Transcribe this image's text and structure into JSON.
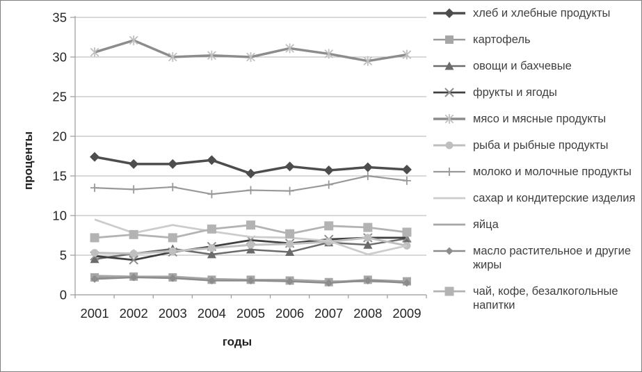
{
  "chart_data": {
    "type": "line",
    "title": "",
    "xlabel": "годы",
    "ylabel": "проценты",
    "ylim": [
      0,
      35
    ],
    "yticks": [
      0,
      5,
      10,
      15,
      20,
      25,
      30,
      35
    ],
    "grid": true,
    "legend_position": "right",
    "categories": [
      "2001",
      "2002",
      "2003",
      "2004",
      "2005",
      "2006",
      "2007",
      "2008",
      "2009"
    ],
    "series": [
      {
        "name": "хлеб и хлебные продукты",
        "marker": "diamond",
        "line_color": "#4d4d4d",
        "marker_color": "#4d4d4d",
        "line_width": 3.5,
        "marker_size": 7,
        "values": [
          17.4,
          16.5,
          16.5,
          17.0,
          15.3,
          16.2,
          15.7,
          16.1,
          15.8
        ]
      },
      {
        "name": "картофель",
        "marker": "square",
        "line_color": "#999999",
        "marker_color": "#a6a6a6",
        "line_width": 2.5,
        "marker_size": 6,
        "values": [
          2.2,
          2.3,
          2.2,
          1.9,
          1.9,
          1.8,
          1.6,
          1.9,
          1.7
        ]
      },
      {
        "name": "овощи и бахчевые",
        "marker": "triangle",
        "line_color": "#6b6b6b",
        "marker_color": "#6b6b6b",
        "line_width": 2.5,
        "marker_size": 6.5,
        "values": [
          4.5,
          5.2,
          5.8,
          5.1,
          5.7,
          5.4,
          6.6,
          6.3,
          7.1
        ]
      },
      {
        "name": "фрукты и ягоды",
        "marker": "x",
        "line_color": "#404040",
        "marker_color": "#8c8c8c",
        "line_width": 2.8,
        "marker_size": 6,
        "values": [
          4.9,
          4.4,
          5.4,
          6.1,
          6.9,
          6.5,
          7.0,
          7.2,
          7.2
        ]
      },
      {
        "name": "мясо и мясные продукты",
        "marker": "asterisk",
        "line_color": "#8c8c8c",
        "marker_color": "#c0c0c0",
        "line_width": 3.5,
        "marker_size": 7,
        "values": [
          30.6,
          32.1,
          30.0,
          30.2,
          30.0,
          31.1,
          30.4,
          29.5,
          30.3
        ]
      },
      {
        "name": "рыба и рыбные продукты",
        "marker": "circle",
        "line_color": "#bfbfbf",
        "marker_color": "#bfbfbf",
        "line_width": 3,
        "marker_size": 5.5,
        "values": [
          5.3,
          5.2,
          5.5,
          5.9,
          6.3,
          6.4,
          6.7,
          7.2,
          6.2
        ]
      },
      {
        "name": "молоко и молочные продукты",
        "marker": "plus",
        "line_color": "#999999",
        "marker_color": "#999999",
        "line_width": 2.2,
        "marker_size": 6,
        "values": [
          13.5,
          13.3,
          13.6,
          12.7,
          13.2,
          13.1,
          13.9,
          15.0,
          14.4
        ]
      },
      {
        "name": "сахар и кондитерские изделия",
        "marker": "none",
        "line_color": "#cccccc",
        "marker_color": "#cccccc",
        "line_width": 2.8,
        "marker_size": 0,
        "values": [
          9.5,
          7.8,
          8.8,
          8.0,
          7.3,
          7.2,
          6.8,
          5.1,
          6.2
        ]
      },
      {
        "name": "яйца",
        "marker": "none",
        "line_color": "#a6a6a6",
        "marker_color": "#a6a6a6",
        "line_width": 2.8,
        "marker_size": 0,
        "values": [
          2.4,
          2.3,
          2.3,
          2.0,
          1.9,
          1.9,
          1.7,
          1.7,
          1.6
        ]
      },
      {
        "name": "масло растительное и другие жиры",
        "marker": "diamond",
        "line_color": "#8c8c8c",
        "marker_color": "#8c8c8c",
        "line_width": 2.5,
        "marker_size": 5.5,
        "values": [
          2.0,
          2.2,
          2.1,
          1.8,
          1.8,
          1.7,
          1.5,
          1.8,
          1.5
        ]
      },
      {
        "name": "чай, кофе, безалкогольные напитки",
        "marker": "square",
        "line_color": "#b3b3b3",
        "marker_color": "#b3b3b3",
        "line_width": 2.8,
        "marker_size": 6.5,
        "values": [
          7.2,
          7.6,
          7.2,
          8.3,
          8.8,
          7.7,
          8.7,
          8.5,
          7.9
        ]
      }
    ],
    "colors": {
      "gridline": "#b3b3b3",
      "axis": "#999999",
      "tick_label": "#262626"
    }
  }
}
